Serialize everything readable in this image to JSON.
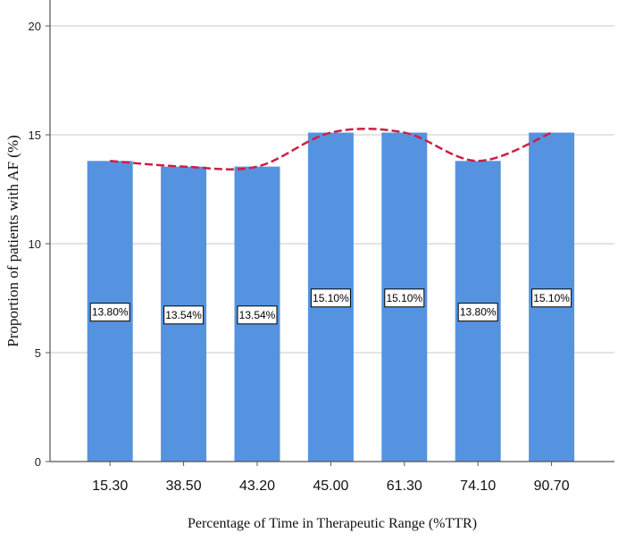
{
  "chart_data": {
    "type": "bar",
    "title": "",
    "xlabel": "Percentage of Time in Therapeutic Range (%TTR)",
    "ylabel": "Proportion of patients with AF (%)",
    "categories": [
      "15.30",
      "38.50",
      "43.20",
      "45.00",
      "61.30",
      "74.10",
      "90.70"
    ],
    "values": [
      13.8,
      13.54,
      13.54,
      15.1,
      15.1,
      13.8,
      15.1
    ],
    "data_labels": [
      "13.80%",
      "13.54%",
      "13.54%",
      "15.10%",
      "15.10%",
      "13.80%",
      "15.10%"
    ],
    "ylim": [
      0,
      20
    ],
    "yticks": [
      "0",
      "5",
      "10",
      "15",
      "20"
    ],
    "grid": true,
    "trendline": {
      "style": "dashed",
      "smooth": true
    },
    "colors": {
      "bar": "#5593e0",
      "trendline": "#cc1f45",
      "grid": "#c8c8c8",
      "axis": "#555555"
    }
  }
}
